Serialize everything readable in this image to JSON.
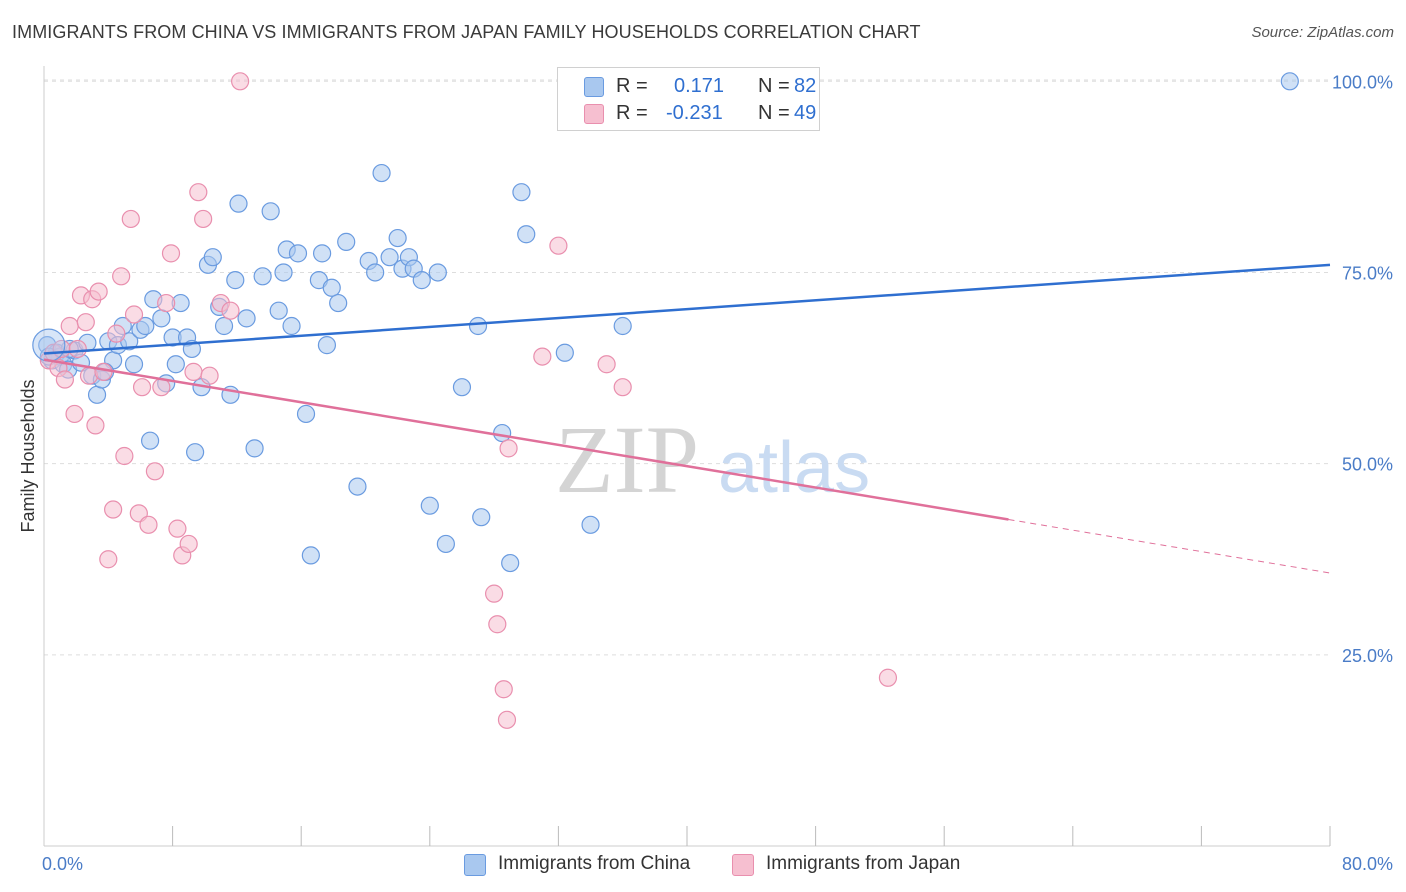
{
  "title": "IMMIGRANTS FROM CHINA VS IMMIGRANTS FROM JAPAN FAMILY HOUSEHOLDS CORRELATION CHART",
  "source": "Source: ZipAtlas.com",
  "watermark": {
    "zip": "ZIP",
    "atlas": "atlas"
  },
  "legend": {
    "rows": [
      {
        "r_label": "R =",
        "r_value": "0.171",
        "n_label": "N =",
        "n_value": "82"
      },
      {
        "r_label": "R =",
        "r_value": "-0.231",
        "n_label": "N =",
        "n_value": "49"
      }
    ]
  },
  "bottom_legend": {
    "china": "Immigrants from China",
    "japan": "Immigrants from Japan"
  },
  "colors": {
    "china_fill": "#a9c8ef",
    "china_stroke": "#6a9be0",
    "china_line": "#2f6fd0",
    "japan_fill": "#f6bfd0",
    "japan_stroke": "#e98fae",
    "japan_line": "#e0709a",
    "tick_label": "#4a7cc7",
    "grid": "#dddddd"
  },
  "chart_data": {
    "type": "scatter",
    "title": "IMMIGRANTS FROM CHINA VS IMMIGRANTS FROM JAPAN FAMILY HOUSEHOLDS CORRELATION CHART",
    "xlabel": "",
    "ylabel": "Family Households",
    "xlim": [
      0,
      80
    ],
    "ylim": [
      0,
      102
    ],
    "x_tick_labels": [
      {
        "value": 0,
        "label": "0.0%"
      },
      {
        "value": 80,
        "label": "80.0%"
      }
    ],
    "x_minor_ticks": [
      8,
      16,
      24,
      32,
      40,
      48,
      56,
      64,
      72
    ],
    "y_ticks": [
      {
        "value": 25,
        "label": "25.0%"
      },
      {
        "value": 50,
        "label": "50.0%"
      },
      {
        "value": 75,
        "label": "75.0%"
      },
      {
        "value": 100,
        "label": "100.0%"
      }
    ],
    "grid": true,
    "legend_position": "top-center",
    "series": [
      {
        "name": "Immigrants from China",
        "color": "#6a9be0",
        "r": 0.171,
        "n": 82,
        "trend": {
          "x0": 0,
          "y0": 64.4,
          "x1": 80,
          "y1": 76.0
        },
        "points": [
          [
            0.2,
            65.5
          ],
          [
            0.5,
            63.5
          ],
          [
            0.8,
            64.5
          ],
          [
            1.0,
            64.0
          ],
          [
            1.2,
            63.0
          ],
          [
            1.5,
            62.3
          ],
          [
            1.9,
            64.8
          ],
          [
            2.3,
            63.2
          ],
          [
            2.7,
            65.8
          ],
          [
            3.0,
            61.5
          ],
          [
            3.3,
            59.0
          ],
          [
            3.6,
            61.0
          ],
          [
            4.0,
            66.0
          ],
          [
            4.3,
            63.5
          ],
          [
            4.6,
            65.5
          ],
          [
            4.9,
            68.0
          ],
          [
            5.3,
            66.0
          ],
          [
            5.6,
            63.0
          ],
          [
            6.0,
            67.5
          ],
          [
            6.3,
            68.0
          ],
          [
            6.6,
            53.0
          ],
          [
            6.8,
            71.5
          ],
          [
            7.3,
            69.0
          ],
          [
            7.6,
            60.5
          ],
          [
            8.0,
            66.5
          ],
          [
            8.2,
            63.0
          ],
          [
            8.5,
            71.0
          ],
          [
            8.9,
            66.5
          ],
          [
            9.2,
            65.0
          ],
          [
            9.4,
            51.5
          ],
          [
            9.8,
            60.0
          ],
          [
            10.2,
            76.0
          ],
          [
            10.5,
            77.0
          ],
          [
            10.9,
            70.5
          ],
          [
            11.2,
            68.0
          ],
          [
            11.6,
            59.0
          ],
          [
            11.9,
            74.0
          ],
          [
            12.1,
            84.0
          ],
          [
            12.6,
            69.0
          ],
          [
            13.1,
            52.0
          ],
          [
            13.6,
            74.5
          ],
          [
            14.1,
            83.0
          ],
          [
            14.6,
            70.0
          ],
          [
            14.9,
            75.0
          ],
          [
            15.1,
            78.0
          ],
          [
            15.4,
            68.0
          ],
          [
            15.8,
            77.5
          ],
          [
            16.3,
            56.5
          ],
          [
            16.6,
            38.0
          ],
          [
            17.1,
            74.0
          ],
          [
            17.3,
            77.5
          ],
          [
            17.6,
            65.5
          ],
          [
            17.9,
            73.0
          ],
          [
            18.3,
            71.0
          ],
          [
            18.8,
            79.0
          ],
          [
            19.5,
            47.0
          ],
          [
            20.2,
            76.5
          ],
          [
            20.6,
            75.0
          ],
          [
            21.0,
            88.0
          ],
          [
            21.5,
            77.0
          ],
          [
            22.0,
            79.5
          ],
          [
            22.3,
            75.5
          ],
          [
            22.7,
            77.0
          ],
          [
            23.0,
            75.5
          ],
          [
            23.5,
            74.0
          ],
          [
            24.0,
            44.5
          ],
          [
            24.5,
            75.0
          ],
          [
            25.0,
            39.5
          ],
          [
            26.0,
            60.0
          ],
          [
            27.0,
            68.0
          ],
          [
            27.2,
            43.0
          ],
          [
            28.5,
            54.0
          ],
          [
            29.0,
            37.0
          ],
          [
            29.7,
            85.5
          ],
          [
            30.0,
            80.0
          ],
          [
            32.4,
            64.5
          ],
          [
            34.0,
            42.0
          ],
          [
            36.0,
            68.0
          ],
          [
            77.5,
            100.0
          ],
          [
            0.3,
            64.0
          ],
          [
            1.6,
            65.0
          ],
          [
            3.8,
            62.0
          ]
        ]
      },
      {
        "name": "Immigrants from Japan",
        "color": "#e98fae",
        "r": -0.231,
        "n": 49,
        "trend": {
          "x0": 0,
          "y0": 63.6,
          "x1": 60,
          "y1": 42.7
        },
        "trend_dashed": {
          "x0": 60,
          "y0": 42.7,
          "x1": 80,
          "y1": 35.7
        },
        "points": [
          [
            0.3,
            63.5
          ],
          [
            0.6,
            64.5
          ],
          [
            0.9,
            62.5
          ],
          [
            1.1,
            65.0
          ],
          [
            1.3,
            61.0
          ],
          [
            1.6,
            68.0
          ],
          [
            1.9,
            56.5
          ],
          [
            2.1,
            65.0
          ],
          [
            2.3,
            72.0
          ],
          [
            2.6,
            68.5
          ],
          [
            2.8,
            61.5
          ],
          [
            3.0,
            71.5
          ],
          [
            3.2,
            55.0
          ],
          [
            3.4,
            72.5
          ],
          [
            3.7,
            62.0
          ],
          [
            4.0,
            37.5
          ],
          [
            4.3,
            44.0
          ],
          [
            4.5,
            67.0
          ],
          [
            4.8,
            74.5
          ],
          [
            5.0,
            51.0
          ],
          [
            5.4,
            82.0
          ],
          [
            5.6,
            69.5
          ],
          [
            5.9,
            43.5
          ],
          [
            6.1,
            60.0
          ],
          [
            6.5,
            42.0
          ],
          [
            6.9,
            49.0
          ],
          [
            7.3,
            60.0
          ],
          [
            7.6,
            71.0
          ],
          [
            7.9,
            77.5
          ],
          [
            8.3,
            41.5
          ],
          [
            8.6,
            38.0
          ],
          [
            9.0,
            39.5
          ],
          [
            9.3,
            62.0
          ],
          [
            9.6,
            85.5
          ],
          [
            9.9,
            82.0
          ],
          [
            10.3,
            61.5
          ],
          [
            11.0,
            71.0
          ],
          [
            11.6,
            70.0
          ],
          [
            12.2,
            100.0
          ],
          [
            28.2,
            29.0
          ],
          [
            32.0,
            78.5
          ],
          [
            28.0,
            33.0
          ],
          [
            31.0,
            64.0
          ],
          [
            35.0,
            63.0
          ],
          [
            36.0,
            60.0
          ],
          [
            52.5,
            22.0
          ],
          [
            28.6,
            20.5
          ],
          [
            28.8,
            16.5
          ],
          [
            28.9,
            52.0
          ]
        ]
      }
    ]
  }
}
